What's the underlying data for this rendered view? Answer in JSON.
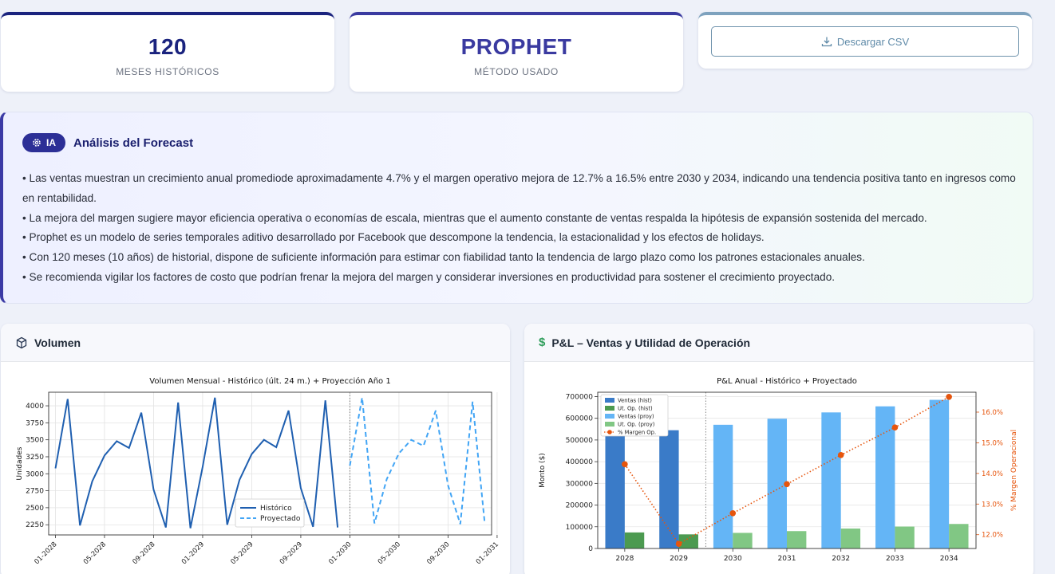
{
  "cards": {
    "months": {
      "value": "120",
      "label": "MESES HISTÓRICOS"
    },
    "method": {
      "value": "PROPHET",
      "label": "MÉTODO USADO"
    },
    "download_label": "Descargar CSV"
  },
  "analysis": {
    "badge": "IA",
    "title": "Análisis del Forecast",
    "bullets": [
      "• Las ventas muestran un crecimiento anual promediode aproximadamente 4.7% y el margen operativo mejora de 12.7% a 16.5% entre 2030 y 2034, indicando una tendencia positiva tanto en ingresos como en rentabilidad.",
      "• La mejora del margen sugiere mayor eficiencia operativa o economías de escala, mientras que el aumento constante de ventas respalda la hipótesis de expansión sostenida del mercado.",
      "• Prophet es un modelo de series temporales aditivo desarrollado por Facebook que descompone la tendencia, la estacionalidad y los efectos de holidays.",
      "• Con 120 meses (10 años) de historial, dispone de suficiente información para estimar con fiabilidad tanto la tendencia de largo plazo como los patrones estacionales anuales.",
      "• Se recomienda vigilar los factores de costo que podrían frenar la mejora del margen y considerar inversiones en productividad para sostener el crecimiento proyectado."
    ]
  },
  "panels": {
    "volume_title": "Volumen",
    "pl_title": "P&L – Ventas y Utilidad de Operación",
    "pl_icon": "$"
  },
  "colors": {
    "hist": "#1f5fb0",
    "proj": "#42a5f5",
    "sales_hist": "#3a7bc8",
    "util_hist": "#4c9a50",
    "sales_proj": "#64b5f6",
    "util_proj": "#81c784",
    "margin": "#e6550d"
  },
  "chart_data": [
    {
      "type": "line",
      "title": "Volumen Mensual - Histórico (últ. 24 m.) + Proyección Año 1",
      "ylabel": "Unidades",
      "xlabel": "",
      "ylim": [
        2100,
        4200
      ],
      "yticks": [
        2250,
        2500,
        2750,
        3000,
        3250,
        3500,
        3750,
        4000
      ],
      "xticks": [
        "01-2028",
        "05-2028",
        "09-2028",
        "01-2029",
        "05-2029",
        "09-2029",
        "01-2030",
        "05-2030",
        "09-2030",
        "01-2031"
      ],
      "grid": true,
      "legend_position": "lower-center",
      "vline_at": "01-2030",
      "series": [
        {
          "name": "Histórico",
          "style": "solid",
          "x": [
            "01-2028",
            "02-2028",
            "03-2028",
            "04-2028",
            "05-2028",
            "06-2028",
            "07-2028",
            "08-2028",
            "09-2028",
            "10-2028",
            "11-2028",
            "12-2028",
            "01-2029",
            "02-2029",
            "03-2029",
            "04-2029",
            "05-2029",
            "06-2029",
            "07-2029",
            "08-2029",
            "09-2029",
            "10-2029",
            "11-2029",
            "12-2029"
          ],
          "values": [
            3080,
            4100,
            2240,
            2890,
            3270,
            3480,
            3380,
            3900,
            2770,
            2210,
            4050,
            2200,
            3100,
            4120,
            2250,
            2910,
            3290,
            3500,
            3390,
            3930,
            2790,
            2220,
            4080,
            2210
          ]
        },
        {
          "name": "Proyectado",
          "style": "dashed",
          "x": [
            "01-2030",
            "02-2030",
            "03-2030",
            "04-2030",
            "05-2030",
            "06-2030",
            "07-2030",
            "08-2030",
            "09-2030",
            "10-2030",
            "11-2030",
            "12-2030"
          ],
          "values": [
            3120,
            4120,
            2270,
            2920,
            3300,
            3500,
            3410,
            3930,
            2830,
            2260,
            4060,
            2260
          ]
        }
      ]
    },
    {
      "type": "bar",
      "title": "P&L Anual - Histórico + Proyectado",
      "ylabel": "Monto ($)",
      "y2label": "% Margen Operacional",
      "xlabel": "",
      "ylim": [
        0,
        720000
      ],
      "yticks": [
        0,
        100000,
        200000,
        300000,
        400000,
        500000,
        600000,
        700000
      ],
      "y2lim": [
        11.55,
        16.65
      ],
      "y2ticks": [
        "12.0%",
        "13.0%",
        "14.0%",
        "15.0%",
        "16.0%"
      ],
      "categories": [
        "2028",
        "2029",
        "2030",
        "2031",
        "2032",
        "2033",
        "2034"
      ],
      "grid": true,
      "legend_position": "upper-left",
      "series": [
        {
          "name": "Ventas (hist)",
          "values": [
            520000,
            545000,
            null,
            null,
            null,
            null,
            null
          ]
        },
        {
          "name": "Ut. Op. (hist)",
          "values": [
            74000,
            65000,
            null,
            null,
            null,
            null,
            null
          ]
        },
        {
          "name": "Ventas (proy)",
          "values": [
            null,
            null,
            570000,
            598000,
            627000,
            655000,
            685000
          ]
        },
        {
          "name": "Ut. Op. (proy)",
          "values": [
            null,
            null,
            72000,
            80000,
            92000,
            101000,
            113000
          ]
        },
        {
          "name": "% Margen Op.",
          "values": [
            14.3,
            11.7,
            12.7,
            13.65,
            14.6,
            15.5,
            16.5
          ]
        }
      ]
    }
  ]
}
